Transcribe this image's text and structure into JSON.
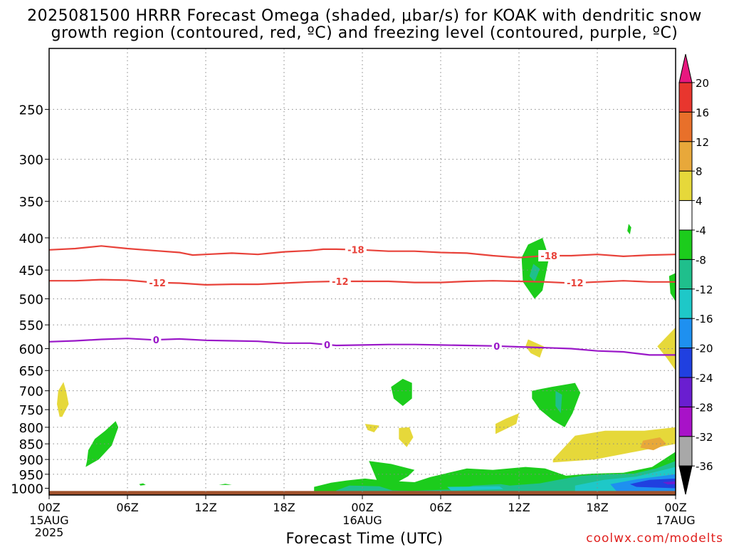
{
  "title": {
    "line1": "2025081500 HRRR Forecast Omega (shaded, μbar/s) for KOAK with dendritic snow",
    "line2": "growth region (contoured, red, ºC) and freezing level (contoured, purple, ºC)"
  },
  "credit": "coolwx.com/modelts",
  "chart_data": {
    "type": "heatmap",
    "xlabel": "Forecast Time (UTC)",
    "x_ticks": [
      "00Z",
      "06Z",
      "12Z",
      "18Z",
      "00Z",
      "06Z",
      "12Z",
      "18Z",
      "00Z"
    ],
    "x_subticks": [
      {
        "index": 0,
        "lines": [
          "15AUG",
          "2025"
        ]
      },
      {
        "index": 4,
        "lines": [
          "16AUG"
        ]
      },
      {
        "index": 8,
        "lines": [
          "17AUG"
        ]
      }
    ],
    "xlim_hours": [
      0,
      48
    ],
    "y_ticks": [
      250,
      300,
      350,
      400,
      450,
      500,
      550,
      600,
      650,
      700,
      750,
      800,
      850,
      900,
      950,
      1000
    ],
    "ylim_hpa": [
      1025,
      200
    ],
    "y_scale": "log",
    "grid": true,
    "colorbar": {
      "labels": [
        "20",
        "16",
        "12",
        "8",
        "4",
        "-4",
        "-8",
        "-12",
        "-16",
        "-20",
        "-24",
        "-28",
        "-32",
        "-36"
      ],
      "bins": [
        {
          "range": [
            20,
            24
          ],
          "color": "#e8187f"
        },
        {
          "range": [
            16,
            20
          ],
          "color": "#e8362e"
        },
        {
          "range": [
            12,
            16
          ],
          "color": "#e8702a"
        },
        {
          "range": [
            8,
            12
          ],
          "color": "#e8a83a"
        },
        {
          "range": [
            4,
            8
          ],
          "color": "#e6d83a"
        },
        {
          "range": [
            -4,
            4
          ],
          "color": "#ffffff"
        },
        {
          "range": [
            -8,
            -4
          ],
          "color": "#1ccc1c"
        },
        {
          "range": [
            -12,
            -8
          ],
          "color": "#1fbf8c"
        },
        {
          "range": [
            -16,
            -12
          ],
          "color": "#1ec8c8"
        },
        {
          "range": [
            -20,
            -16
          ],
          "color": "#1e90f0"
        },
        {
          "range": [
            -24,
            -20
          ],
          "color": "#2040e0"
        },
        {
          "range": [
            -28,
            -24
          ],
          "color": "#6a1ed0"
        },
        {
          "range": [
            -32,
            -28
          ],
          "color": "#a812c8"
        },
        {
          "range": [
            -36,
            -32
          ],
          "color": "#a8a8a8"
        },
        {
          "range": [
            -40,
            -36
          ],
          "color": "#000000"
        }
      ]
    },
    "contours": [
      {
        "name": "-18",
        "color": "#e8423a",
        "label": "-18",
        "points": [
          [
            0,
            418
          ],
          [
            2,
            416
          ],
          [
            4,
            412
          ],
          [
            6,
            416
          ],
          [
            8,
            419
          ],
          [
            10,
            422
          ],
          [
            11,
            426
          ],
          [
            12,
            425
          ],
          [
            14,
            423
          ],
          [
            16,
            425
          ],
          [
            18,
            421
          ],
          [
            20,
            419
          ],
          [
            21,
            417
          ],
          [
            22,
            417
          ],
          [
            24,
            418
          ],
          [
            26,
            420
          ],
          [
            28,
            420
          ],
          [
            30,
            422
          ],
          [
            32,
            423
          ],
          [
            34,
            427
          ],
          [
            36,
            430
          ],
          [
            38,
            427
          ],
          [
            40,
            427
          ],
          [
            42,
            425
          ],
          [
            44,
            428
          ],
          [
            46,
            426
          ],
          [
            48,
            425
          ]
        ],
        "label_x": [
          23.5,
          38.3
        ]
      },
      {
        "name": "-12",
        "color": "#e8423a",
        "label": "-12",
        "points": [
          [
            0,
            468
          ],
          [
            2,
            468
          ],
          [
            4,
            466
          ],
          [
            6,
            467
          ],
          [
            8,
            471
          ],
          [
            10,
            472
          ],
          [
            12,
            475
          ],
          [
            14,
            474
          ],
          [
            16,
            474
          ],
          [
            18,
            472
          ],
          [
            20,
            470
          ],
          [
            22,
            469
          ],
          [
            24,
            469
          ],
          [
            26,
            469
          ],
          [
            28,
            471
          ],
          [
            30,
            471
          ],
          [
            32,
            469
          ],
          [
            34,
            468
          ],
          [
            36,
            469
          ],
          [
            38,
            470
          ],
          [
            40,
            472
          ],
          [
            42,
            470
          ],
          [
            44,
            468
          ],
          [
            46,
            470
          ],
          [
            48,
            470
          ]
        ],
        "label_x": [
          8.3,
          22.3,
          40.3
        ]
      },
      {
        "name": "0",
        "color": "#9a18c8",
        "label": "0",
        "points": [
          [
            0,
            585
          ],
          [
            2,
            583
          ],
          [
            4,
            580
          ],
          [
            6,
            578
          ],
          [
            8,
            581
          ],
          [
            10,
            579
          ],
          [
            12,
            582
          ],
          [
            14,
            583
          ],
          [
            16,
            584
          ],
          [
            18,
            588
          ],
          [
            20,
            588
          ],
          [
            22,
            593
          ],
          [
            24,
            592
          ],
          [
            26,
            591
          ],
          [
            28,
            591
          ],
          [
            30,
            592
          ],
          [
            32,
            593
          ],
          [
            34,
            594
          ],
          [
            36,
            596
          ],
          [
            38,
            598
          ],
          [
            40,
            600
          ],
          [
            42,
            605
          ],
          [
            44,
            607
          ],
          [
            46,
            614
          ],
          [
            48,
            614
          ]
        ],
        "label_x": [
          8.2,
          21.3,
          34.3
        ]
      }
    ],
    "shaded_regions": [
      {
        "value": -6,
        "points": [
          [
            2.8,
            925
          ],
          [
            3.8,
            900
          ],
          [
            4.8,
            855
          ],
          [
            5.3,
            800
          ],
          [
            5.1,
            782
          ],
          [
            4.3,
            810
          ],
          [
            3.5,
            835
          ],
          [
            3.0,
            870
          ],
          [
            2.9,
            905
          ]
        ]
      },
      {
        "value": 6,
        "points": [
          [
            1.0,
            770
          ],
          [
            1.5,
            735
          ],
          [
            1.3,
            700
          ],
          [
            1.1,
            678
          ],
          [
            0.7,
            700
          ],
          [
            0.6,
            735
          ],
          [
            0.8,
            770
          ]
        ]
      },
      {
        "value": -6,
        "points": [
          [
            7.0,
            990
          ],
          [
            7.4,
            988
          ],
          [
            7.2,
            982
          ],
          [
            6.9,
            985
          ]
        ]
      },
      {
        "value": -6,
        "points": [
          [
            13.0,
            988
          ],
          [
            14.0,
            988
          ],
          [
            13.5,
            984
          ]
        ]
      },
      {
        "value": 6,
        "points": [
          [
            24.2,
            790
          ],
          [
            25.3,
            795
          ],
          [
            24.9,
            815
          ],
          [
            24.4,
            808
          ]
        ]
      },
      {
        "value": 6,
        "points": [
          [
            26.8,
            802
          ],
          [
            27.6,
            800
          ],
          [
            27.9,
            830
          ],
          [
            27.4,
            860
          ],
          [
            26.8,
            835
          ]
        ]
      },
      {
        "value": -6,
        "points": [
          [
            27.1,
            670
          ],
          [
            27.8,
            680
          ],
          [
            27.8,
            720
          ],
          [
            27.1,
            740
          ],
          [
            26.4,
            720
          ],
          [
            26.2,
            690
          ]
        ]
      },
      {
        "value": 6,
        "points": [
          [
            34.2,
            820
          ],
          [
            35.8,
            790
          ],
          [
            36.0,
            760
          ],
          [
            35.0,
            775
          ],
          [
            34.2,
            790
          ]
        ]
      },
      {
        "value": 6,
        "points": [
          [
            36.7,
            580
          ],
          [
            37.9,
            595
          ],
          [
            37.6,
            620
          ],
          [
            36.9,
            610
          ],
          [
            36.5,
            595
          ]
        ]
      },
      {
        "value": -6,
        "points": [
          [
            36.7,
            410
          ],
          [
            37.8,
            400
          ],
          [
            38.3,
            430
          ],
          [
            37.8,
            485
          ],
          [
            37.2,
            500
          ],
          [
            36.3,
            470
          ],
          [
            36.2,
            430
          ]
        ]
      },
      {
        "value": -10,
        "points": [
          [
            37.1,
            440
          ],
          [
            37.6,
            448
          ],
          [
            37.2,
            470
          ],
          [
            36.8,
            460
          ]
        ]
      },
      {
        "value": -6,
        "points": [
          [
            37.0,
            700
          ],
          [
            38.5,
            690
          ],
          [
            40.3,
            680
          ],
          [
            40.7,
            705
          ],
          [
            40.1,
            760
          ],
          [
            39.5,
            800
          ],
          [
            38.6,
            780
          ],
          [
            37.6,
            750
          ],
          [
            37.0,
            720
          ]
        ]
      },
      {
        "value": -10,
        "points": [
          [
            38.8,
            700
          ],
          [
            39.3,
            710
          ],
          [
            39.2,
            760
          ],
          [
            38.8,
            740
          ]
        ]
      },
      {
        "value": -6,
        "points": [
          [
            44.4,
            380
          ],
          [
            44.6,
            385
          ],
          [
            44.5,
            395
          ],
          [
            44.3,
            390
          ]
        ]
      },
      {
        "value": -6,
        "points": [
          [
            47.5,
            460
          ],
          [
            48,
            455
          ],
          [
            48,
            505
          ],
          [
            47.6,
            490
          ]
        ]
      },
      {
        "value": 6,
        "points": [
          [
            46.6,
            595
          ],
          [
            48,
            555
          ],
          [
            48,
            650
          ],
          [
            47.3,
            620
          ]
        ]
      },
      {
        "value": 6,
        "points": [
          [
            38.6,
            900
          ],
          [
            40.3,
            825
          ],
          [
            42.6,
            810
          ],
          [
            45.6,
            810
          ],
          [
            48,
            800
          ],
          [
            48,
            850
          ],
          [
            45.5,
            870
          ],
          [
            41.8,
            900
          ],
          [
            38.6,
            910
          ]
        ]
      },
      {
        "value": 10,
        "points": [
          [
            45.5,
            840
          ],
          [
            46.8,
            830
          ],
          [
            47.3,
            850
          ],
          [
            46.3,
            870
          ],
          [
            45.3,
            862
          ]
        ]
      },
      {
        "value": -6,
        "points": [
          [
            20.3,
            995
          ],
          [
            21.6,
            980
          ],
          [
            22.8,
            972
          ],
          [
            24.2,
            965
          ],
          [
            25.1,
            970
          ],
          [
            24.5,
            905
          ],
          [
            26.2,
            915
          ],
          [
            28.0,
            935
          ],
          [
            27.5,
            957
          ],
          [
            26.8,
            975
          ],
          [
            28.0,
            978
          ],
          [
            29.2,
            960
          ],
          [
            32.0,
            930
          ],
          [
            34.0,
            935
          ],
          [
            36.5,
            925
          ],
          [
            38.0,
            930
          ],
          [
            39.6,
            955
          ],
          [
            41.6,
            948
          ],
          [
            44.0,
            945
          ],
          [
            46.2,
            925
          ],
          [
            48,
            875
          ],
          [
            48,
            1025
          ],
          [
            20.3,
            1025
          ]
        ]
      },
      {
        "value": -10,
        "points": [
          [
            22.0,
            1008
          ],
          [
            23.0,
            990
          ],
          [
            25.3,
            993
          ],
          [
            26.3,
            1008
          ],
          [
            27.8,
            1010
          ],
          [
            31.5,
            1003
          ],
          [
            32.5,
            990
          ],
          [
            34.6,
            985
          ],
          [
            35.3,
            990
          ],
          [
            37.6,
            982
          ],
          [
            39.0,
            970
          ],
          [
            40.8,
            955
          ],
          [
            43.0,
            950
          ],
          [
            44.8,
            948
          ],
          [
            46.5,
            930
          ],
          [
            48,
            905
          ],
          [
            48,
            1025
          ],
          [
            22.0,
            1025
          ]
        ]
      },
      {
        "value": -14,
        "points": [
          [
            30.5,
            995
          ],
          [
            34.5,
            993
          ],
          [
            34.8,
            1003
          ],
          [
            30.8,
            1008
          ]
        ]
      },
      {
        "value": -14,
        "points": [
          [
            40.3,
            990
          ],
          [
            42.5,
            970
          ],
          [
            45.0,
            958
          ],
          [
            48,
            925
          ],
          [
            48,
            1025
          ],
          [
            40.3,
            1025
          ]
        ]
      },
      {
        "value": -18,
        "points": [
          [
            43.0,
            985
          ],
          [
            45.0,
            968
          ],
          [
            48,
            950
          ],
          [
            48,
            1015
          ],
          [
            43.5,
            1012
          ]
        ]
      },
      {
        "value": -22,
        "points": [
          [
            44.5,
            985
          ],
          [
            46.0,
            970
          ],
          [
            48,
            965
          ],
          [
            48,
            1000
          ],
          [
            45.0,
            995
          ]
        ]
      },
      {
        "value": -26,
        "points": [
          [
            47.0,
            978
          ],
          [
            48,
            975
          ],
          [
            48,
            985
          ],
          [
            47.4,
            986
          ]
        ]
      }
    ],
    "ground": {
      "pressure_from": 1010,
      "color": "#a0522d"
    }
  }
}
